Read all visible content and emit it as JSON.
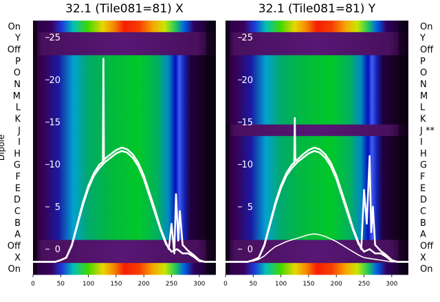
{
  "chart_data": {
    "type": "heatmap",
    "x_axis": {
      "ticks": [
        0,
        50,
        100,
        150,
        200,
        250,
        300
      ],
      "range": [
        0,
        330
      ]
    },
    "y_axis": {
      "label": "Dipole",
      "ticks": [
        0,
        5,
        10,
        15,
        20,
        25
      ],
      "range": [
        -3,
        27
      ],
      "tick_color": "#ffffff"
    },
    "colormap": "nipy_spectral",
    "rows_left": [
      "On",
      "Y",
      "Off",
      "P",
      "O",
      "N",
      "M",
      "L",
      "K",
      "J",
      "I",
      "H",
      "G",
      "F",
      "E",
      "D",
      "C",
      "B",
      "A",
      "Off",
      "X",
      "On"
    ],
    "rows_right": [
      "On",
      "Y",
      "Off",
      "P",
      "O",
      "N",
      "M",
      "L",
      "K",
      "J **",
      "I",
      "H",
      "G",
      "F",
      "E",
      "D",
      "C",
      "B",
      "A",
      "Off",
      "X",
      "On"
    ],
    "panels": [
      {
        "title": "32.1 (Tile081=81) X",
        "series": [
          {
            "x": [
              0,
              40,
              50,
              60,
              70,
              80,
              90,
              100,
              110,
              120,
              126,
              127,
              128,
              130,
              140,
              150,
              160,
              170,
              180,
              190,
              200,
              210,
              220,
              230,
              240,
              245,
              250,
              255,
              258,
              262,
              265,
              270,
              280,
              290,
              300,
              310,
              330
            ],
            "y": [
              -1.5,
              -1.5,
              -1.3,
              -1.0,
              0.5,
              3.0,
              5.5,
              7.5,
              9.0,
              10.0,
              10.3,
              22.5,
              10.5,
              10.7,
              11.2,
              11.7,
              12.0,
              11.8,
              11.2,
              10.2,
              8.7,
              6.7,
              4.7,
              2.5,
              0.8,
              0.0,
              3.0,
              -0.5,
              6.5,
              1.0,
              4.5,
              0.5,
              -0.2,
              -0.7,
              -1.3,
              -1.5,
              -1.5
            ]
          },
          {
            "x": [
              0,
              40,
              50,
              60,
              70,
              80,
              90,
              100,
              110,
              120,
              130,
              140,
              150,
              160,
              170,
              180,
              190,
              200,
              210,
              220,
              230,
              240,
              250,
              260,
              270,
              280,
              290,
              300,
              310,
              330
            ],
            "y": [
              -1.5,
              -1.5,
              -1.3,
              -1.0,
              0.4,
              2.8,
              5.2,
              7.2,
              8.7,
              9.6,
              10.3,
              10.8,
              11.3,
              11.6,
              11.4,
              10.8,
              9.8,
              8.3,
              6.3,
              4.3,
              2.3,
              0.6,
              -0.3,
              0.0,
              -0.5,
              -0.5,
              -0.9,
              -1.4,
              -1.5,
              -1.5
            ]
          }
        ]
      },
      {
        "title": "32.1 (Tile081=81) Y",
        "series": [
          {
            "x": [
              0,
              40,
              50,
              60,
              70,
              80,
              90,
              100,
              110,
              120,
              124,
              125,
              126,
              130,
              140,
              150,
              160,
              170,
              180,
              190,
              200,
              210,
              220,
              230,
              240,
              245,
              250,
              255,
              260,
              263,
              266,
              270,
              280,
              290,
              300,
              310,
              330
            ],
            "y": [
              -1.5,
              -1.5,
              -1.3,
              -1.0,
              0.5,
              3.0,
              5.5,
              7.5,
              9.0,
              10.0,
              10.2,
              15.5,
              10.4,
              10.6,
              11.2,
              11.7,
              12.0,
              11.8,
              11.2,
              10.2,
              8.7,
              6.7,
              4.7,
              2.5,
              0.8,
              0.0,
              7.0,
              3.0,
              11.0,
              2.0,
              5.0,
              0.5,
              -0.2,
              -0.7,
              -1.3,
              -1.5,
              -1.5
            ]
          },
          {
            "x": [
              0,
              40,
              50,
              60,
              70,
              80,
              90,
              100,
              110,
              120,
              130,
              140,
              150,
              160,
              170,
              180,
              190,
              200,
              210,
              220,
              230,
              240,
              250,
              260,
              270,
              280,
              290,
              300,
              310,
              330
            ],
            "y": [
              -1.5,
              -1.5,
              -1.3,
              -1.0,
              0.4,
              2.8,
              5.2,
              7.2,
              8.7,
              9.6,
              10.3,
              10.8,
              11.3,
              11.6,
              11.4,
              10.8,
              9.8,
              8.3,
              6.3,
              4.3,
              2.3,
              0.6,
              -0.3,
              0.0,
              -0.5,
              -0.5,
              -0.9,
              -1.4,
              -1.5,
              -1.5
            ]
          },
          {
            "x": [
              0,
              40,
              50,
              60,
              70,
              80,
              90,
              100,
              110,
              120,
              130,
              140,
              150,
              160,
              170,
              180,
              190,
              200,
              210,
              220,
              230,
              240,
              250,
              260,
              270,
              280,
              300,
              330
            ],
            "y": [
              -1.5,
              -1.5,
              -1.4,
              -1.2,
              -0.8,
              -0.2,
              0.3,
              0.6,
              0.9,
              1.1,
              1.3,
              1.5,
              1.7,
              1.8,
              1.7,
              1.5,
              1.2,
              0.9,
              0.5,
              0.1,
              -0.3,
              -0.7,
              -1.0,
              -1.1,
              -1.2,
              -1.3,
              -1.5,
              -1.5
            ]
          }
        ]
      }
    ]
  }
}
